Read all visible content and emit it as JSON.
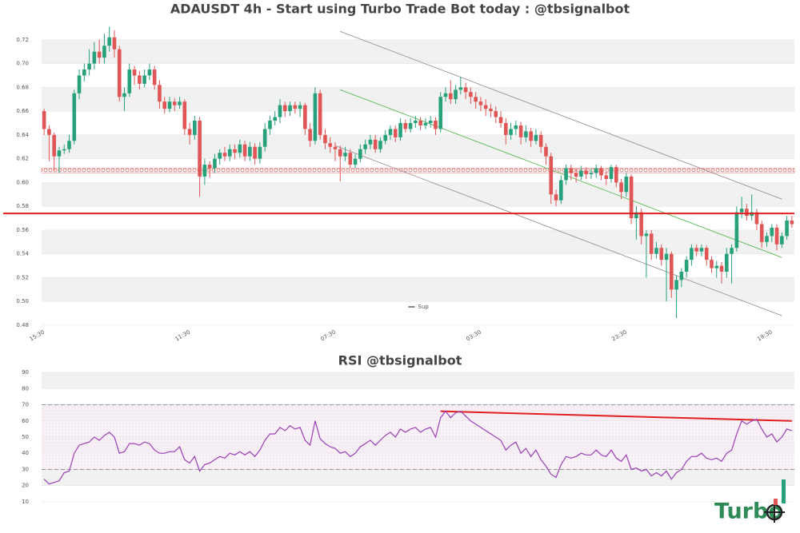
{
  "chart_data": [
    {
      "type": "candlestick",
      "title": "ADAUSDT 4h - Start using Turbo Trade Bot today : @tbsignalbot",
      "up_color": "#26a17b",
      "down_color": "#e05555",
      "categories": [
        "15:30",
        null,
        null,
        null,
        null,
        null,
        null,
        null,
        null,
        null,
        null,
        null,
        null,
        null,
        null,
        null,
        null,
        null,
        null,
        null,
        null,
        null,
        null,
        null,
        null,
        null,
        null,
        null,
        null,
        "11:30",
        null,
        null,
        null,
        null,
        null,
        null,
        null,
        null,
        null,
        null,
        null,
        null,
        null,
        null,
        null,
        null,
        null,
        null,
        null,
        null,
        null,
        null,
        null,
        null,
        null,
        null,
        null,
        null,
        "07:30",
        null,
        null,
        null,
        null,
        null,
        null,
        null,
        null,
        null,
        null,
        null,
        null,
        null,
        null,
        null,
        null,
        null,
        null,
        null,
        null,
        null,
        null,
        null,
        null,
        null,
        null,
        null,
        null,
        "03:30",
        null,
        null,
        null,
        null,
        null,
        null,
        null,
        null,
        null,
        null,
        null,
        null,
        null,
        null,
        null,
        null,
        null,
        null,
        null,
        null,
        null,
        null,
        null,
        null,
        null,
        null,
        null,
        null,
        "23:30",
        null,
        null,
        null,
        null,
        null,
        null,
        null,
        null,
        null,
        null,
        null,
        null,
        null,
        null,
        null,
        null,
        null,
        null,
        null,
        null,
        null,
        null,
        null,
        null,
        null,
        null,
        null,
        null,
        "19:30",
        null,
        null,
        null,
        null
      ],
      "values": [
        [
          0.66,
          0.662,
          0.64,
          0.645
        ],
        [
          0.645,
          0.648,
          0.618,
          0.64
        ],
        [
          0.64,
          0.642,
          0.61,
          0.622
        ],
        [
          0.622,
          0.63,
          0.608,
          0.627
        ],
        [
          0.627,
          0.632,
          0.624,
          0.628
        ],
        [
          0.628,
          0.64,
          0.625,
          0.635
        ],
        [
          0.635,
          0.678,
          0.632,
          0.675
        ],
        [
          0.675,
          0.695,
          0.67,
          0.69
        ],
        [
          0.69,
          0.7,
          0.685,
          0.695
        ],
        [
          0.695,
          0.712,
          0.69,
          0.7
        ],
        [
          0.7,
          0.718,
          0.695,
          0.71
        ],
        [
          0.71,
          0.72,
          0.7,
          0.705
        ],
        [
          0.705,
          0.725,
          0.7,
          0.715
        ],
        [
          0.715,
          0.731,
          0.71,
          0.722
        ],
        [
          0.722,
          0.728,
          0.705,
          0.712
        ],
        [
          0.712,
          0.715,
          0.668,
          0.672
        ],
        [
          0.672,
          0.68,
          0.66,
          0.675
        ],
        [
          0.675,
          0.7,
          0.672,
          0.695
        ],
        [
          0.695,
          0.698,
          0.682,
          0.69
        ],
        [
          0.69,
          0.694,
          0.678,
          0.683
        ],
        [
          0.683,
          0.695,
          0.68,
          0.69
        ],
        [
          0.69,
          0.7,
          0.686,
          0.695
        ],
        [
          0.695,
          0.698,
          0.678,
          0.682
        ],
        [
          0.682,
          0.686,
          0.662,
          0.668
        ],
        [
          0.668,
          0.672,
          0.658,
          0.662
        ],
        [
          0.662,
          0.672,
          0.659,
          0.668
        ],
        [
          0.668,
          0.671,
          0.66,
          0.665
        ],
        [
          0.665,
          0.672,
          0.662,
          0.668
        ],
        [
          0.668,
          0.67,
          0.64,
          0.645
        ],
        [
          0.645,
          0.65,
          0.632,
          0.64
        ],
        [
          0.64,
          0.656,
          0.636,
          0.652
        ],
        [
          0.652,
          0.655,
          0.588,
          0.605
        ],
        [
          0.605,
          0.62,
          0.598,
          0.615
        ],
        [
          0.615,
          0.618,
          0.604,
          0.612
        ],
        [
          0.612,
          0.624,
          0.608,
          0.62
        ],
        [
          0.62,
          0.628,
          0.615,
          0.625
        ],
        [
          0.625,
          0.63,
          0.618,
          0.622
        ],
        [
          0.622,
          0.632,
          0.618,
          0.628
        ],
        [
          0.628,
          0.632,
          0.62,
          0.625
        ],
        [
          0.625,
          0.636,
          0.621,
          0.632
        ],
        [
          0.632,
          0.635,
          0.618,
          0.622
        ],
        [
          0.622,
          0.634,
          0.618,
          0.63
        ],
        [
          0.63,
          0.633,
          0.615,
          0.62
        ],
        [
          0.62,
          0.634,
          0.616,
          0.63
        ],
        [
          0.63,
          0.65,
          0.626,
          0.645
        ],
        [
          0.645,
          0.656,
          0.64,
          0.652
        ],
        [
          0.652,
          0.66,
          0.648,
          0.655
        ],
        [
          0.655,
          0.67,
          0.65,
          0.665
        ],
        [
          0.665,
          0.668,
          0.655,
          0.66
        ],
        [
          0.66,
          0.668,
          0.656,
          0.665
        ],
        [
          0.665,
          0.668,
          0.658,
          0.662
        ],
        [
          0.662,
          0.668,
          0.655,
          0.665
        ],
        [
          0.665,
          0.667,
          0.64,
          0.645
        ],
        [
          0.645,
          0.65,
          0.63,
          0.635
        ],
        [
          0.635,
          0.68,
          0.632,
          0.675
        ],
        [
          0.675,
          0.678,
          0.636,
          0.64
        ],
        [
          0.64,
          0.645,
          0.628,
          0.633
        ],
        [
          0.633,
          0.638,
          0.625,
          0.63
        ],
        [
          0.63,
          0.634,
          0.618,
          0.628
        ],
        [
          0.628,
          0.631,
          0.601,
          0.622
        ],
        [
          0.622,
          0.63,
          0.618,
          0.625
        ],
        [
          0.625,
          0.628,
          0.612,
          0.615
        ],
        [
          0.615,
          0.624,
          0.612,
          0.62
        ],
        [
          0.62,
          0.632,
          0.617,
          0.628
        ],
        [
          0.628,
          0.636,
          0.624,
          0.632
        ],
        [
          0.632,
          0.64,
          0.628,
          0.636
        ],
        [
          0.636,
          0.64,
          0.625,
          0.628
        ],
        [
          0.628,
          0.638,
          0.625,
          0.635
        ],
        [
          0.635,
          0.644,
          0.632,
          0.64
        ],
        [
          0.64,
          0.648,
          0.636,
          0.645
        ],
        [
          0.645,
          0.648,
          0.634,
          0.638
        ],
        [
          0.638,
          0.654,
          0.635,
          0.65
        ],
        [
          0.65,
          0.653,
          0.642,
          0.645
        ],
        [
          0.645,
          0.654,
          0.642,
          0.65
        ],
        [
          0.65,
          0.656,
          0.646,
          0.652
        ],
        [
          0.652,
          0.655,
          0.644,
          0.648
        ],
        [
          0.648,
          0.654,
          0.645,
          0.65
        ],
        [
          0.65,
          0.656,
          0.646,
          0.652
        ],
        [
          0.652,
          0.655,
          0.64,
          0.645
        ],
        [
          0.645,
          0.676,
          0.642,
          0.672
        ],
        [
          0.672,
          0.68,
          0.668,
          0.675
        ],
        [
          0.675,
          0.686,
          0.666,
          0.67
        ],
        [
          0.67,
          0.682,
          0.666,
          0.678
        ],
        [
          0.678,
          0.689,
          0.674,
          0.68
        ],
        [
          0.68,
          0.684,
          0.67,
          0.676
        ],
        [
          0.676,
          0.68,
          0.666,
          0.672
        ],
        [
          0.672,
          0.676,
          0.662,
          0.668
        ],
        [
          0.668,
          0.672,
          0.66,
          0.665
        ],
        [
          0.665,
          0.67,
          0.656,
          0.662
        ],
        [
          0.662,
          0.666,
          0.655,
          0.66
        ],
        [
          0.66,
          0.664,
          0.65,
          0.655
        ],
        [
          0.655,
          0.66,
          0.646,
          0.65
        ],
        [
          0.65,
          0.654,
          0.632,
          0.64
        ],
        [
          0.64,
          0.65,
          0.636,
          0.645
        ],
        [
          0.645,
          0.652,
          0.64,
          0.648
        ],
        [
          0.648,
          0.651,
          0.632,
          0.638
        ],
        [
          0.638,
          0.648,
          0.634,
          0.643
        ],
        [
          0.643,
          0.646,
          0.63,
          0.635
        ],
        [
          0.635,
          0.645,
          0.632,
          0.64
        ],
        [
          0.64,
          0.643,
          0.625,
          0.63
        ],
        [
          0.63,
          0.633,
          0.615,
          0.622
        ],
        [
          0.622,
          0.625,
          0.582,
          0.59
        ],
        [
          0.59,
          0.594,
          0.58,
          0.585
        ],
        [
          0.585,
          0.606,
          0.582,
          0.602
        ],
        [
          0.602,
          0.615,
          0.598,
          0.612
        ],
        [
          0.612,
          0.615,
          0.602,
          0.608
        ],
        [
          0.608,
          0.612,
          0.6,
          0.605
        ],
        [
          0.605,
          0.614,
          0.602,
          0.61
        ],
        [
          0.61,
          0.613,
          0.603,
          0.607
        ],
        [
          0.607,
          0.612,
          0.603,
          0.608
        ],
        [
          0.608,
          0.615,
          0.604,
          0.612
        ],
        [
          0.612,
          0.614,
          0.602,
          0.606
        ],
        [
          0.606,
          0.609,
          0.598,
          0.603
        ],
        [
          0.603,
          0.615,
          0.6,
          0.613
        ],
        [
          0.613,
          0.615,
          0.596,
          0.6
        ],
        [
          0.6,
          0.603,
          0.586,
          0.592
        ],
        [
          0.592,
          0.608,
          0.588,
          0.605
        ],
        [
          0.605,
          0.607,
          0.565,
          0.57
        ],
        [
          0.57,
          0.58,
          0.552,
          0.575
        ],
        [
          0.575,
          0.578,
          0.548,
          0.555
        ],
        [
          0.555,
          0.56,
          0.52,
          0.557
        ],
        [
          0.557,
          0.56,
          0.535,
          0.54
        ],
        [
          0.54,
          0.55,
          0.536,
          0.545
        ],
        [
          0.545,
          0.548,
          0.53,
          0.535
        ],
        [
          0.535,
          0.545,
          0.5,
          0.54
        ],
        [
          0.54,
          0.542,
          0.503,
          0.51
        ],
        [
          0.51,
          0.522,
          0.486,
          0.518
        ],
        [
          0.518,
          0.528,
          0.512,
          0.525
        ],
        [
          0.525,
          0.538,
          0.52,
          0.535
        ],
        [
          0.535,
          0.548,
          0.53,
          0.545
        ],
        [
          0.545,
          0.548,
          0.538,
          0.542
        ],
        [
          0.542,
          0.548,
          0.538,
          0.545
        ],
        [
          0.545,
          0.547,
          0.53,
          0.535
        ],
        [
          0.535,
          0.538,
          0.524,
          0.528
        ],
        [
          0.528,
          0.534,
          0.52,
          0.53
        ],
        [
          0.53,
          0.533,
          0.515,
          0.525
        ],
        [
          0.525,
          0.545,
          0.52,
          0.54
        ],
        [
          0.54,
          0.548,
          0.515,
          0.545
        ],
        [
          0.545,
          0.58,
          0.542,
          0.575
        ],
        [
          0.575,
          0.588,
          0.57,
          0.578
        ],
        [
          0.578,
          0.582,
          0.568,
          0.572
        ],
        [
          0.572,
          0.59,
          0.568,
          0.575
        ],
        [
          0.575,
          0.578,
          0.56,
          0.565
        ],
        [
          0.565,
          0.568,
          0.545,
          0.55
        ],
        [
          0.55,
          0.558,
          0.546,
          0.555
        ],
        [
          0.555,
          0.565,
          0.55,
          0.562
        ],
        [
          0.562,
          0.565,
          0.543,
          0.548
        ],
        [
          0.548,
          0.558,
          0.545,
          0.555
        ],
        [
          0.555,
          0.572,
          0.552,
          0.568
        ],
        [
          0.568,
          0.572,
          0.562,
          0.565
        ]
      ],
      "ylim": [
        0.48,
        0.74
      ],
      "yticks": [
        0.48,
        {
          "value": 0.5,
          "label": "0.50"
        },
        0.52,
        0.54,
        0.56,
        0.58,
        {
          "value": 0.6,
          "label": "0.60"
        },
        0.62,
        0.64,
        0.66,
        0.68,
        {
          "value": 0.7,
          "label": "0.70"
        },
        0.72
      ],
      "grid": "bands",
      "hlines": [
        {
          "name": "Sup",
          "value": 0.574,
          "color": "#e02020"
        }
      ],
      "zone": {
        "value": 0.61,
        "color": "#d9534f"
      },
      "trendlines": [
        {
          "x": [
            59,
            147
          ],
          "y": [
            0.727,
            0.586
          ],
          "color": "#a09090"
        },
        {
          "x": [
            59,
            147
          ],
          "y": [
            0.678,
            0.537
          ],
          "color": "#5cb85c"
        },
        {
          "x": [
            58,
            147
          ],
          "y": [
            0.631,
            0.488
          ],
          "color": "#a09090"
        }
      ],
      "legend": "lower center"
    },
    {
      "type": "line",
      "title": "RSI @tbsignalbot",
      "color": "#9b3fb5",
      "values": [
        24,
        21,
        22,
        23,
        28,
        29,
        40,
        45,
        46,
        47,
        50,
        48,
        51,
        53,
        50,
        40,
        41,
        46,
        46,
        45,
        47,
        46,
        42,
        40,
        40,
        41,
        41,
        44,
        36,
        34,
        38,
        29,
        33,
        34,
        36,
        38,
        37,
        40,
        39,
        41,
        39,
        41,
        38,
        42,
        48,
        52,
        52,
        56,
        54,
        57,
        55,
        56,
        48,
        45,
        60,
        49,
        46,
        44,
        43,
        40,
        41,
        38,
        40,
        44,
        46,
        48,
        45,
        48,
        51,
        53,
        50,
        55,
        53,
        55,
        56,
        53,
        55,
        56,
        50,
        62,
        66,
        62,
        65,
        66,
        63,
        60,
        58,
        56,
        54,
        52,
        50,
        48,
        42,
        45,
        47,
        40,
        43,
        38,
        42,
        36,
        32,
        27,
        25,
        33,
        38,
        37,
        38,
        40,
        39,
        39,
        42,
        39,
        38,
        42,
        37,
        35,
        39,
        30,
        31,
        29,
        30,
        26,
        28,
        26,
        29,
        24,
        28,
        30,
        35,
        38,
        38,
        40,
        37,
        36,
        37,
        35,
        40,
        42,
        52,
        60,
        58,
        60,
        61,
        55,
        50,
        52,
        47,
        50,
        55,
        54
      ],
      "ylim": [
        8,
        92
      ],
      "yticks": [
        10,
        20,
        30,
        40,
        50,
        60,
        70,
        80,
        90
      ],
      "grid": "bands",
      "levels": [
        70,
        30
      ],
      "trendlines": [
        {
          "x": [
            79,
            149
          ],
          "y": [
            66,
            60
          ],
          "color": "#e02020"
        }
      ]
    }
  ],
  "logo": "Turbo"
}
